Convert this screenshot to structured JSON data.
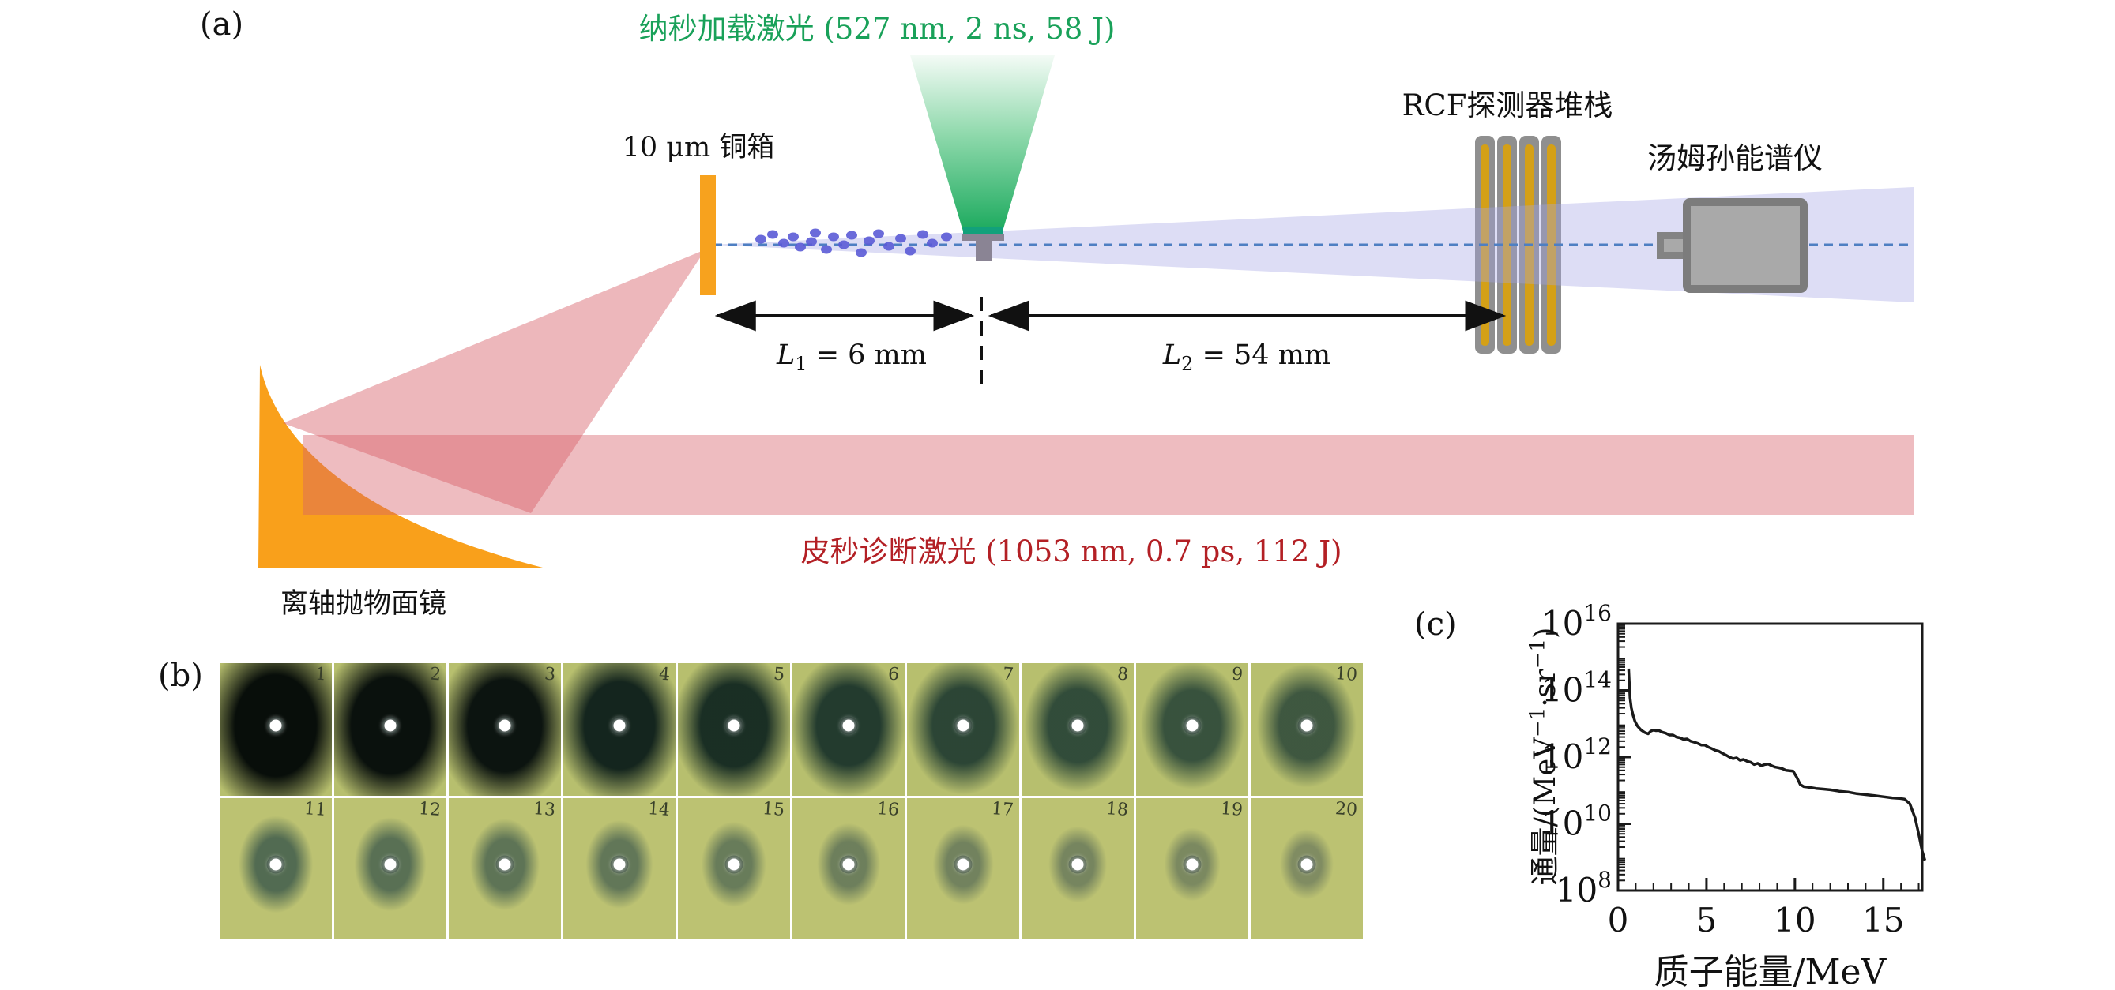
{
  "panel_labels": {
    "a": "(a)",
    "b": "(b)",
    "c": "(c)"
  },
  "diagram": {
    "ns_laser_label": "纳秒加载激光 (527 nm, 2 ns, 58 J)",
    "ps_laser_label": "皮秒诊断激光 (1053 nm, 0.7 ps, 112 J)",
    "foil_label": "10 μm 铜箱",
    "rcf_label": "RCF探测器堆栈",
    "thomson_label": "汤姆孙能谱仪",
    "parabola_label": "离轴抛物面镜",
    "dim1": {
      "sym": "L",
      "sub": "1",
      "rest": " = 6 mm"
    },
    "dim2": {
      "sym": "L",
      "sub": "2",
      "rest": " = 54 mm"
    },
    "colors": {
      "ns_laser_green": "#1CA95E",
      "ps_laser_red": "#B32025",
      "pink_beam": "rgba(214,96,104,0.42)",
      "pink_cone": "rgba(214,96,104,0.45)",
      "foil_orange": "#F7A21E",
      "parabola_orange": "#F9A01B",
      "proton_beam_lavender": "rgba(165,165,228,0.38)",
      "proton_dot_blue": "#5B5BD6",
      "axis_dash_blue": "#4E7FC2",
      "rcf_gray": "#8F8F8F",
      "rcf_gold": "#D4A017",
      "target_gray": "#8A8494",
      "spectrometer_gray": "#A9A9A9",
      "film_olive": "#B7BF6E"
    }
  },
  "films": {
    "row1_bg": "#b7bf6e",
    "row2_bg": "#bcc272",
    "items": [
      {
        "n": "1",
        "size": 132,
        "rgb": "8,14,10",
        "alpha": 1,
        "radius": "16%"
      },
      {
        "n": "2",
        "size": 126,
        "rgb": "10,17,13",
        "alpha": 1,
        "radius": "42%"
      },
      {
        "n": "3",
        "size": 120,
        "rgb": "12,20,16",
        "alpha": 1,
        "radius": "46%"
      },
      {
        "n": "4",
        "size": 114,
        "rgb": "17,34,28",
        "alpha": 0.98,
        "radius": "50%"
      },
      {
        "n": "5",
        "size": 108,
        "rgb": "21,42,34",
        "alpha": 0.97,
        "radius": "50%"
      },
      {
        "n": "6",
        "size": 103,
        "rgb": "27,52,43",
        "alpha": 0.95,
        "radius": "50%"
      },
      {
        "n": "7",
        "size": 99,
        "rgb": "33,60,49",
        "alpha": 0.93,
        "radius": "50%"
      },
      {
        "n": "8",
        "size": 95,
        "rgb": "38,66,53",
        "alpha": 0.92,
        "radius": "50%"
      },
      {
        "n": "9",
        "size": 92,
        "rgb": "42,70,56",
        "alpha": 0.9,
        "radius": "50%"
      },
      {
        "n": "10",
        "size": 89,
        "rgb": "46,73,58",
        "alpha": 0.88,
        "radius": "50%"
      },
      {
        "n": "11",
        "size": 66,
        "rgb": "64,92,76",
        "alpha": 0.85,
        "radius": "50%"
      },
      {
        "n": "12",
        "size": 64,
        "rgb": "67,94,78",
        "alpha": 0.82,
        "radius": "50%"
      },
      {
        "n": "13",
        "size": 62,
        "rgb": "70,96,79",
        "alpha": 0.8,
        "radius": "50%"
      },
      {
        "n": "14",
        "size": 60,
        "rgb": "73,98,81",
        "alpha": 0.78,
        "radius": "50%"
      },
      {
        "n": "15",
        "size": 58,
        "rgb": "76,100,82",
        "alpha": 0.75,
        "radius": "50%"
      },
      {
        "n": "16",
        "size": 56,
        "rgb": "79,101,83",
        "alpha": 0.72,
        "radius": "50%"
      },
      {
        "n": "17",
        "size": 54,
        "rgb": "82,103,85",
        "alpha": 0.7,
        "radius": "50%"
      },
      {
        "n": "18",
        "size": 52,
        "rgb": "85,104,86",
        "alpha": 0.68,
        "radius": "50%"
      },
      {
        "n": "19",
        "size": 50,
        "rgb": "88,106,87",
        "alpha": 0.65,
        "radius": "50%"
      },
      {
        "n": "20",
        "size": 48,
        "rgb": "91,107,88",
        "alpha": 0.62,
        "radius": "50%"
      }
    ]
  },
  "chart_data": {
    "type": "line",
    "title": "",
    "xlabel": "质子能量/MeV",
    "ylabel": "通量/(MeV⁻¹·sr⁻¹)",
    "ylabel_parts": {
      "prefix": "通量/(MeV",
      "sup1": "−1",
      "mid": "·sr",
      "sup2": "−1",
      "suffix": ")"
    },
    "xlim": [
      0,
      17.2
    ],
    "x_ticks": [
      0,
      5,
      10,
      15
    ],
    "x_minor_step": 1,
    "ylog_exponents": [
      8,
      10,
      12,
      14,
      16
    ],
    "ylim_exp": [
      8,
      16
    ],
    "grid": false,
    "legend": null,
    "line_color": "#1a1a1a",
    "points": [
      [
        0.6,
        450000000000000.0
      ],
      [
        0.63,
        200000000000000.0
      ],
      [
        0.68,
        60000000000000.0
      ],
      [
        0.75,
        30000000000000.0
      ],
      [
        0.85,
        18000000000000.0
      ],
      [
        0.95,
        12000000000000.0
      ],
      [
        1.1,
        8500000000000.0
      ],
      [
        1.3,
        6500000000000.0
      ],
      [
        1.5,
        5500000000000.0
      ],
      [
        1.7,
        5000000000000.0
      ],
      [
        1.85,
        6000000000000.0
      ],
      [
        2.0,
        6500000000000.0
      ],
      [
        2.15,
        6200000000000.0
      ],
      [
        2.3,
        6300000000000.0
      ],
      [
        2.5,
        5600000000000.0
      ],
      [
        2.7,
        5200000000000.0
      ],
      [
        2.9,
        4600000000000.0
      ],
      [
        3.1,
        4600000000000.0
      ],
      [
        3.3,
        4000000000000.0
      ],
      [
        3.5,
        3800000000000.0
      ],
      [
        3.7,
        3400000000000.0
      ],
      [
        3.9,
        3500000000000.0
      ],
      [
        4.1,
        3000000000000.0
      ],
      [
        4.3,
        2800000000000.0
      ],
      [
        4.5,
        2600000000000.0
      ],
      [
        4.7,
        2300000000000.0
      ],
      [
        4.9,
        2300000000000.0
      ],
      [
        5.1,
        2000000000000.0
      ],
      [
        5.3,
        1800000000000.0
      ],
      [
        5.5,
        1600000000000.0
      ],
      [
        5.7,
        1500000000000.0
      ],
      [
        5.9,
        1300000000000.0
      ],
      [
        6.1,
        1150000000000.0
      ],
      [
        6.3,
        1000000000000.0
      ],
      [
        6.5,
        900000000000.0
      ],
      [
        6.7,
        950000000000.0
      ],
      [
        6.9,
        800000000000.0
      ],
      [
        7.1,
        850000000000.0
      ],
      [
        7.3,
        750000000000.0
      ],
      [
        7.5,
        700000000000.0
      ],
      [
        7.7,
        600000000000.0
      ],
      [
        7.9,
        650000000000.0
      ],
      [
        8.1,
        550000000000.0
      ],
      [
        8.3,
        600000000000.0
      ],
      [
        8.5,
        620000000000.0
      ],
      [
        8.7,
        550000000000.0
      ],
      [
        8.9,
        500000000000.0
      ],
      [
        9.1,
        480000000000.0
      ],
      [
        9.3,
        450000000000.0
      ],
      [
        9.5,
        400000000000.0
      ],
      [
        9.7,
        390000000000.0
      ],
      [
        9.9,
        380000000000.0
      ],
      [
        10.1,
        250000000000.0
      ],
      [
        10.3,
        150000000000.0
      ],
      [
        10.5,
        130000000000.0
      ],
      [
        10.8,
        125000000000.0
      ],
      [
        11.2,
        115000000000.0
      ],
      [
        11.6,
        110000000000.0
      ],
      [
        12.0,
        105000000000.0
      ],
      [
        12.5,
        95000000000.0
      ],
      [
        13.0,
        90000000000.0
      ],
      [
        13.5,
        80000000000.0
      ],
      [
        14.0,
        75000000000.0
      ],
      [
        14.5,
        70000000000.0
      ],
      [
        15.0,
        65000000000.0
      ],
      [
        15.5,
        60000000000.0
      ],
      [
        15.9,
        58000000000.0
      ],
      [
        16.2,
        55000000000.0
      ],
      [
        16.5,
        40000000000.0
      ],
      [
        16.8,
        15000000000.0
      ],
      [
        17.0,
        5000000000.0
      ],
      [
        17.2,
        1500000000.0
      ],
      [
        17.35,
        800000000.0
      ]
    ]
  }
}
